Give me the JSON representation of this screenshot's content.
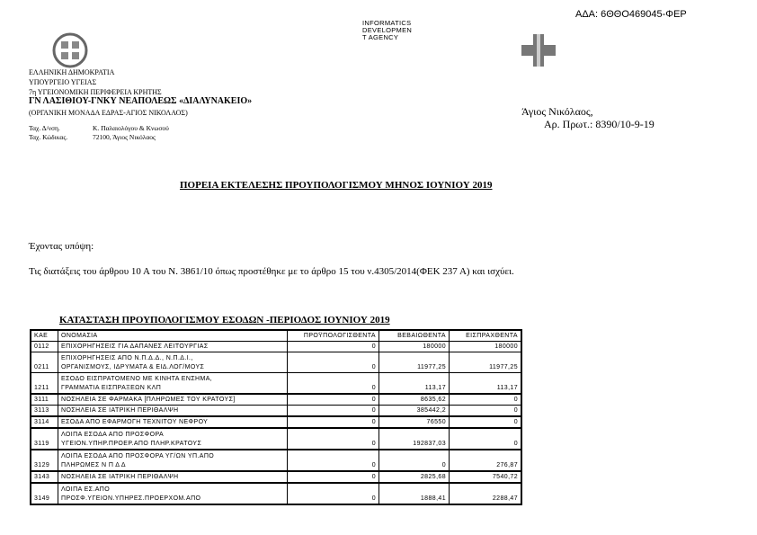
{
  "ada": "ΑΔΑ: 6ΘΘΟ469045-ΦΕΡ",
  "watermark": {
    "lines": [
      "INFORMATICS",
      "DEVELOPMEN",
      "T AGENCY"
    ]
  },
  "header": {
    "lines": [
      "ΕΛΛΗΝΙΚΗ ΔΗΜΟΚΡΑΤΙΑ",
      "ΥΠΟΥΡΓΕΙΟ ΥΓΕΙΑΣ",
      "7η ΥΓΕΙΟΝΟΜΙΚΗ ΠΕΡΙΦΕΡΕΙΑ ΚΡΗΤΗΣ"
    ],
    "hospital": "ΓΝ ΛΑΣΙΘΙΟΥ-ΓΝΚΥ ΝΕΑΠΟΛΕΩΣ «ΔΙΑΛΥΝΑΚΕΙΟ»",
    "unit": "(ΟΡΓΑΝΙΚΗ ΜΟΝΑΔΑ ΕΔΡΑΣ-ΑΓΙΟΣ ΝΙΚΟΛΑΟΣ)",
    "addr_label": "Ταχ. Δ/νση.",
    "addr_value": "Κ. Παλαιολόγου & Κνωσού",
    "zip_label": "Ταχ. Κώδικας.",
    "zip_value": "72100, Άγιος Νικόλαος"
  },
  "place": "Άγιος Νικόλαος,",
  "protocol": "Αρ. Πρωτ.: 8390/10-9-19",
  "title": "ΠΟΡΕΙΑ ΕΚΤΕΛΕΣΗΣ ΠΡΟΥΠΟΛΟΓΙΣΜΟΥ ΜΗΝΟΣ ΙΟΥΝΙΟΥ 2019",
  "intro": "Έχοντας υπόψη:",
  "paragraph": "Τις διατάξεις του άρθρου 10 Α του Ν. 3861/10 όπως προστέθηκε με το άρθρο 15 του ν.4305/2014(ΦΕΚ 237 Α) και ισχύει.",
  "table": {
    "title": "ΚΑΤΑΣΤΑΣΗ ΠΡΟΥΠΟΛΟΓΙΣΜΟΥ ΕΣΟΔΩΝ -ΠΕΡΙΟΔΟΣ ΙΟΥΝΙΟΥ 2019",
    "columns": [
      "ΚΑΕ",
      "ΟΝΟΜΑΣΙΑ",
      "ΠΡΟΫΠΟΛΟΓΙΣΘΕΝΤΑ",
      "ΒΕΒΑΙΩΘΕΝΤΑ",
      "ΕΙΣΠΡΑΧΘΕΝΤΑ"
    ],
    "rows": [
      {
        "kae": "0112",
        "name": [
          "ΕΠΙΧΟΡΗΓΗΣΕΙΣ ΓΙΑ ΔΑΠΑΝΕΣ ΛΕΙΤΟΥΡΓΙΑΣ"
        ],
        "budget": "0",
        "certified": "180000",
        "collected": "180000"
      },
      {
        "kae": "0211",
        "name": [
          "ΕΠΙΧΟΡΗΓΗΣΕΙΣ ΑΠΟ Ν.Π.Δ.Δ., Ν.Π.Δ.Ι.,",
          "ΟΡΓΑΝΙΣΜΟΥΣ, ΙΔΡΥΜΑΤΑ & ΕΙΔ.ΛΟΓ/ΜΟΥΣ"
        ],
        "budget": "0",
        "certified": "11977,25",
        "collected": "11977,25"
      },
      {
        "kae": "1211",
        "name": [
          "ΕΣΟΔΟ ΕΙΣΠΡΑΤΟΜΕΝΟ ΜΕ ΚΙΝΗΤΑ ΕΝΣΗΜΑ,",
          "ΓΡΑΜΜΑΤΙΑ ΕΙΣΠΡΑΞΕΩΝ ΚΛΠ"
        ],
        "budget": "0",
        "certified": "113,17",
        "collected": "113,17"
      },
      {
        "kae": "3111",
        "name": [
          "ΝΟΣΗΛΕΙΑ ΣΕ ΦΑΡΜΑΚΑ [ΠΛΗΡΩΜΕΣ ΤΟΥ ΚΡΑΤΟΥΣ]"
        ],
        "budget": "0",
        "certified": "8635,62",
        "collected": "0"
      },
      {
        "kae": "3113",
        "name": [
          "ΝΟΣΗΛΕΙΑ ΣΕ ΙΑΤΡΙΚΗ ΠΕΡΙΘΑΛΨΗ"
        ],
        "budget": "0",
        "certified": "385442,2",
        "collected": "0"
      },
      {
        "kae": "3114",
        "name": [
          "ΕΣΟΔΑ ΑΠΟ ΕΦΑΡΜΟΓΗ ΤΕΧΝΙΤΟΥ ΝΕΦΡΟΥ"
        ],
        "budget": "0",
        "certified": "76550",
        "collected": "0"
      },
      {
        "kae": "3119",
        "name": [
          "ΛΟΙΠΑ ΕΣΟΔΑ ΑΠΟ ΠΡΟΣΦΟΡΑ",
          "ΥΓΕΙΟΝ.ΥΠΗΡ.ΠΡΟΕΡ.ΑΠΟ ΠΛΗΡ.ΚΡΑΤΟΥΣ"
        ],
        "budget": "0",
        "certified": "192837,03",
        "collected": "0"
      },
      {
        "kae": "3129",
        "name": [
          "ΛΟΙΠΑ ΕΣΟΔΑ ΑΠΟ ΠΡΟΣΦΟΡΑ ΥΓ/ΩΝ ΥΠ.ΑΠΟ",
          "ΠΛΗΡΩΜΕΣ Ν Π Δ Δ"
        ],
        "budget": "0",
        "certified": "0",
        "collected": "276,87"
      },
      {
        "kae": "3143",
        "name": [
          "ΝΟΣΗΛΕΙΑ ΣΕ ΙΑΤΡΙΚΗ ΠΕΡΙΘΑΛΨΗ"
        ],
        "budget": "0",
        "certified": "2825,68",
        "collected": "7540,72"
      },
      {
        "kae": "3149",
        "name": [
          "ΛΟΙΠΑ ΕΣ.ΑΠΟ",
          "ΠΡΟΣΦ.ΥΓΕΙΟΝ.ΥΠΗΡΕΣ.ΠΡΟΕΡΧΟΜ.ΑΠΟ"
        ],
        "budget": "0",
        "certified": "1888,41",
        "collected": "2288,47"
      }
    ]
  }
}
